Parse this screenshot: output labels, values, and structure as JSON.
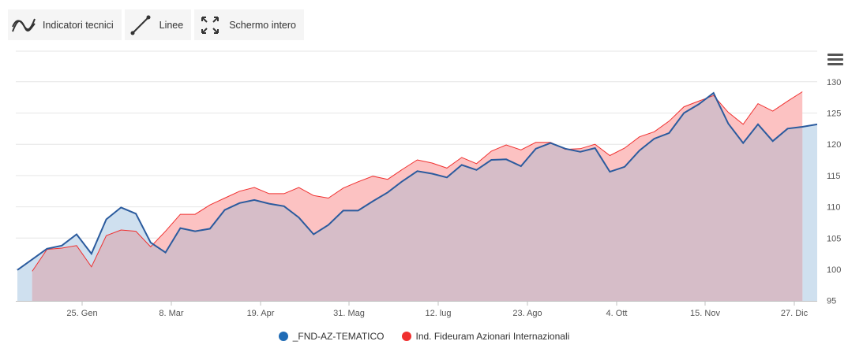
{
  "toolbar": {
    "indicators_label": "Indicatori tecnici",
    "lines_label": "Linee",
    "fullscreen_label": "Schermo intero"
  },
  "colors": {
    "series1_line": "#2b5b9e",
    "series1_fill": "#cfe0ef",
    "series2_line": "#f0302f",
    "series2_fill": "#fcc2c2",
    "overlap_fill": "#d6bdc8",
    "grid": "#e6e6e6",
    "axis": "#c0c0c0"
  },
  "chart_data": {
    "type": "area",
    "y_ticks": [
      95,
      100,
      105,
      110,
      115,
      120,
      125,
      130
    ],
    "ylim": [
      95,
      130
    ],
    "x_ticks": [
      "25. Gen",
      "8. Mar",
      "19. Apr",
      "31. Mag",
      "12. lug",
      "23. Ago",
      "4. Ott",
      "15. Nov",
      "27. Dic"
    ],
    "grid": true,
    "legend_position": "bottom-center",
    "series": [
      {
        "name": "_FND-AZ-TEMATICO",
        "values": [
          99.9,
          101.6,
          103.3,
          103.8,
          105.6,
          102.5,
          108.0,
          109.9,
          108.9,
          104.3,
          102.7,
          106.6,
          106.1,
          106.5,
          109.5,
          110.6,
          111.1,
          110.5,
          110.1,
          108.3,
          105.6,
          107.1,
          109.4,
          109.4,
          110.9,
          112.3,
          114.1,
          115.7,
          115.3,
          114.7,
          116.7,
          115.9,
          117.5,
          117.6,
          116.5,
          119.3,
          120.2,
          119.3,
          118.8,
          119.4,
          115.6,
          116.4,
          119.0,
          120.9,
          121.8,
          125.0,
          126.4,
          128.2,
          123.3,
          120.2,
          123.2,
          120.5,
          122.5,
          122.8,
          123.2
        ]
      },
      {
        "name": "Ind. Fideuram Azionari Internazionali",
        "values": [
          null,
          99.7,
          103.2,
          103.4,
          103.8,
          100.4,
          105.4,
          106.3,
          106.1,
          103.6,
          106.1,
          108.8,
          108.8,
          110.3,
          111.4,
          112.5,
          113.1,
          112.1,
          112.1,
          113.1,
          111.8,
          111.4,
          113.0,
          114.0,
          114.9,
          114.4,
          116.0,
          117.5,
          117.0,
          116.2,
          117.9,
          116.9,
          118.9,
          119.9,
          119.1,
          120.3,
          120.3,
          119.2,
          119.3,
          120.0,
          118.2,
          119.4,
          121.2,
          122.0,
          123.7,
          126.0,
          126.9,
          127.8,
          125.1,
          123.2,
          126.5,
          125.3,
          126.9,
          128.4
        ]
      }
    ]
  }
}
